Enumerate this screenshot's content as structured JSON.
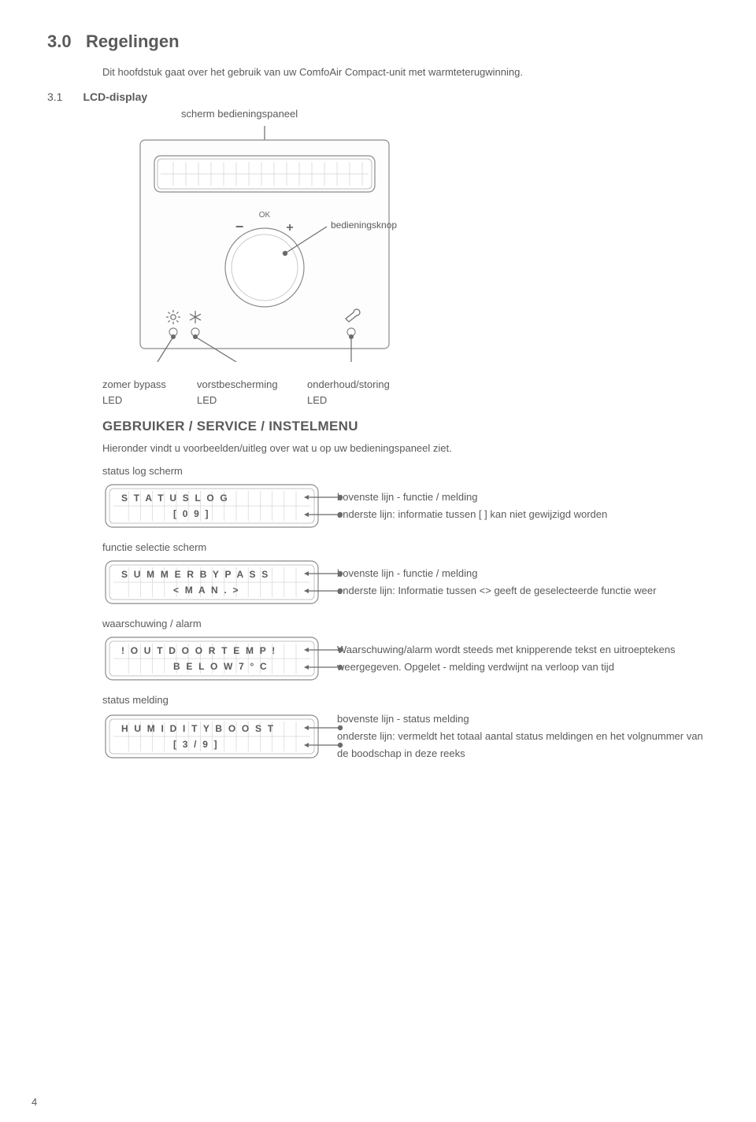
{
  "heading": {
    "num": "3.0",
    "title": "Regelingen"
  },
  "intro": "Dit hoofdstuk gaat over het gebruik van uw ComfoAir Compact-unit met warmteterugwinning.",
  "sub": {
    "num": "3.1",
    "title": "LCD-display",
    "caption": "scherm bedieningspaneel"
  },
  "panel": {
    "ok_label": "OK",
    "minus": "−",
    "plus": "+",
    "knob_caption": "bedieningsknop",
    "colors": {
      "stroke": "#7a7a7a",
      "fill_light": "#f4f4f4",
      "bullet": "#6b6b6b"
    }
  },
  "led_labels": {
    "col0_top": "zomer bypass",
    "col0_bot": "LED",
    "col1_top": "vorstbescherming",
    "col1_bot": "LED",
    "col2_top": "onderhoud/storing",
    "col2_bot": "LED"
  },
  "section": "GEBRUIKER / SERVICE / INSTELMENU",
  "section_desc": "Hieronder vindt u voorbeelden/uitleg over wat u op uw bedieningspaneel ziet.",
  "screens": [
    {
      "label": "status log scherm",
      "line1": "S T A T U S    L O G",
      "line2": "[ 0 9 ]",
      "desc1": "bovenste lijn - functie / melding",
      "desc2": "onderste lijn: informatie tussen [ ] kan niet gewijzigd worden"
    },
    {
      "label": "functie selectie scherm",
      "line1": "S U M M E R   B Y P A S S",
      "line2": "< M A N . >",
      "desc1": "bovenste lijn - functie / melding",
      "desc2": "onderste lijn: Informatie tussen <> geeft de geselecteerde functie weer"
    },
    {
      "label": "waarschuwing / alarm",
      "line1": "!   O U T D O O R   T E M P   !",
      "line2": "B E L O W   7 ° C",
      "desc1": "Waarschuwing/alarm wordt steeds met knipperende tekst en uitroeptekens",
      "desc2": "weergegeven. Opgelet - melding verdwijnt na verloop van tijd"
    },
    {
      "label": "status melding",
      "line1": "H U M I D I T Y   B O O S T",
      "line2": "[ 3 / 9 ]",
      "desc1": "bovenste lijn - status melding",
      "desc2": "onderste lijn: vermeldt het totaal aantal status meldingen en het volgnummer van de boodschap in deze reeks"
    }
  ],
  "page_number": "4"
}
